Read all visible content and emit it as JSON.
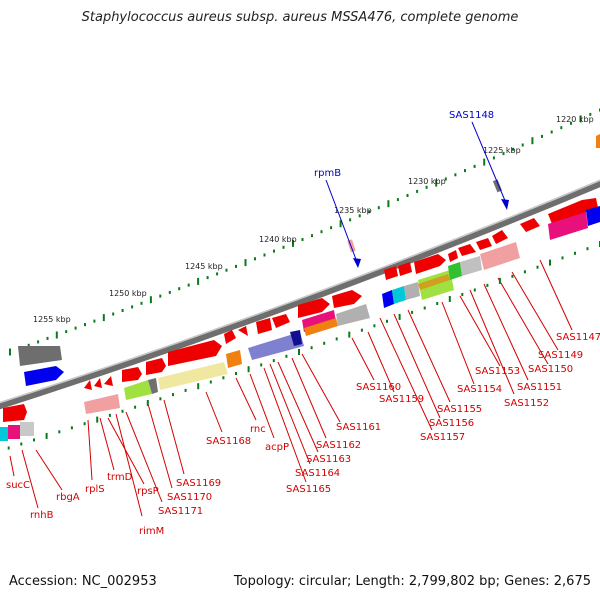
{
  "title": "Staphylococcus aureus subsp. aureus MSSA476, complete genome",
  "accession_text": "Accession: NC_002953",
  "topology_text": "Topology: circular; Length: 2,799,802 bp; Genes: 2,675",
  "scale_ticks": [
    "1220 kbp",
    "1225 kbp",
    "1230 kbp",
    "1235 kbp",
    "1240 kbp",
    "1245 kbp",
    "1250 kbp",
    "1255 kbp"
  ],
  "highlighted_genes": [
    "SAS1148",
    "rpmB"
  ],
  "gene_labels": [
    "sucC",
    "rnhB",
    "rbgA",
    "rplS",
    "trmD",
    "rpsP",
    "rimM",
    "SAS1171",
    "SAS1170",
    "SAS1169",
    "SAS1168",
    "rnc",
    "acpP",
    "SAS1165",
    "SAS1164",
    "SAS1163",
    "SAS1162",
    "SAS1161",
    "SAS1160",
    "SAS1159",
    "SAS1157",
    "SAS1156",
    "SAS1155",
    "SAS1154",
    "SAS1153",
    "SAS1152",
    "SAS1151",
    "SAS1150",
    "SAS1149",
    "SAS1147"
  ],
  "colors": {
    "backbone": "#6e6e6e",
    "forward_gene": "#ee0000",
    "label": "#d40000",
    "highlight": "#0000cc",
    "tick": "#0a7a1a"
  }
}
